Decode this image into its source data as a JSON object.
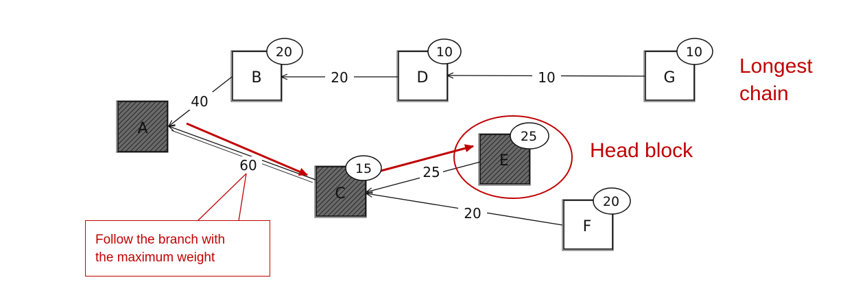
{
  "blocks": {
    "A": {
      "label": "A"
    },
    "B": {
      "label": "B",
      "weight": "20"
    },
    "C": {
      "label": "C",
      "weight": "15"
    },
    "D": {
      "label": "D",
      "weight": "10"
    },
    "E": {
      "label": "E",
      "weight": "25"
    },
    "F": {
      "label": "F",
      "weight": "20"
    },
    "G": {
      "label": "G",
      "weight": "10"
    }
  },
  "edges": {
    "B_A": "40",
    "D_B": "20",
    "G_D": "10",
    "C_A": "60",
    "E_C": "25",
    "F_C": "20"
  },
  "annotations": {
    "longest_chain_line1": "Longest",
    "longest_chain_line2": "chain",
    "head_block": "Head block",
    "callout_line1": "Follow the branch with",
    "callout_line2": "the maximum weight"
  },
  "colors": {
    "accent": "#c00000",
    "ink": "#111111",
    "shaded_block": "#555555"
  }
}
